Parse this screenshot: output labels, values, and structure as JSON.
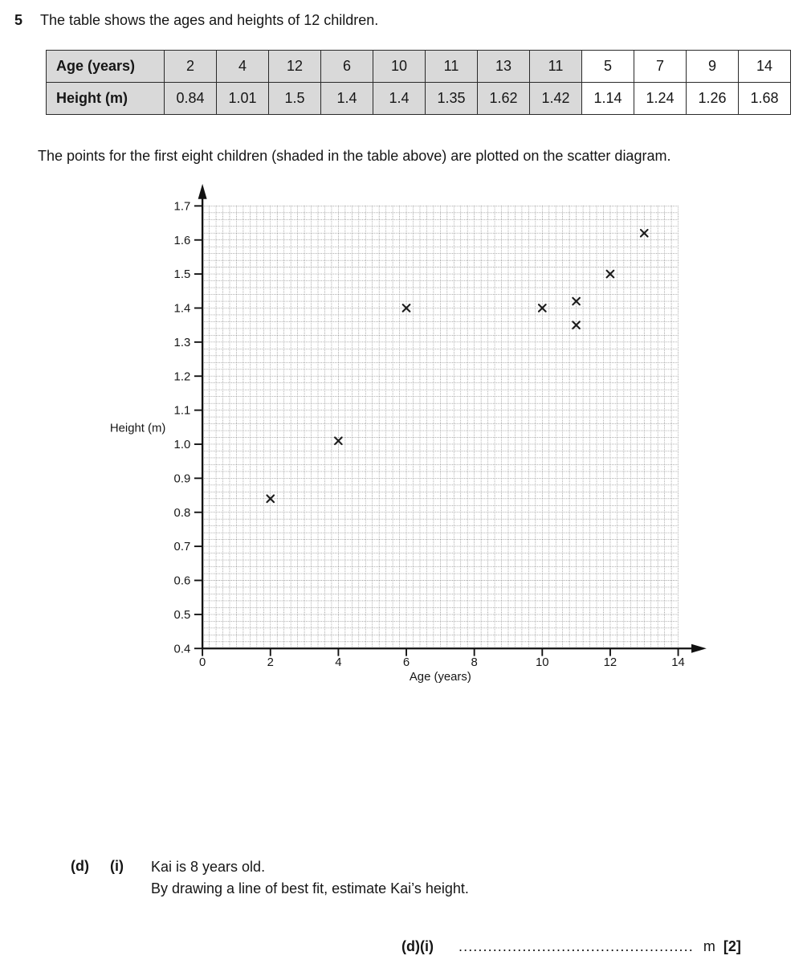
{
  "question": {
    "number": "5",
    "intro": "The table shows the ages and heights of 12 children.",
    "plot_note": "The points for the first eight children (shaded in the table above) are plotted on the scatter diagram."
  },
  "table": {
    "row_headers": [
      "Age (years)",
      "Height (m)"
    ],
    "rows": [
      [
        "2",
        "4",
        "12",
        "6",
        "10",
        "11",
        "13",
        "11",
        "5",
        "7",
        "9",
        "14"
      ],
      [
        "0.84",
        "1.01",
        "1.5",
        "1.4",
        "1.4",
        "1.35",
        "1.62",
        "1.42",
        "1.14",
        "1.24",
        "1.26",
        "1.68"
      ]
    ],
    "shaded_count": 8,
    "shaded_color": "#d9d9d9"
  },
  "chart_data": {
    "type": "scatter",
    "title": "",
    "xlabel": "Age (years)",
    "ylabel": "Height (m)",
    "xlim": [
      0,
      14
    ],
    "ylim": [
      0.4,
      1.7
    ],
    "x_tick_labels": [
      "0",
      "2",
      "4",
      "6",
      "8",
      "10",
      "12",
      "14"
    ],
    "x_tick_values": [
      0,
      2,
      4,
      6,
      8,
      10,
      12,
      14
    ],
    "y_tick_labels": [
      "0.4",
      "0.5",
      "0.6",
      "0.7",
      "0.8",
      "0.9",
      "1.0",
      "1.1",
      "1.2",
      "1.3",
      "1.4",
      "1.5",
      "1.6",
      "1.7"
    ],
    "y_tick_values": [
      0.4,
      0.5,
      0.6,
      0.7,
      0.8,
      0.9,
      1.0,
      1.1,
      1.2,
      1.3,
      1.4,
      1.5,
      1.6,
      1.7
    ],
    "x_minor_step": 0.2,
    "y_minor_step": 0.02,
    "grid": true,
    "legend": false,
    "marker": "x",
    "marker_color": "#1c1c1c",
    "grid_color": "#5a5a5a",
    "axis_color": "#111111",
    "points": [
      {
        "x": 2,
        "y": 0.84
      },
      {
        "x": 4,
        "y": 1.01
      },
      {
        "x": 12,
        "y": 1.5
      },
      {
        "x": 6,
        "y": 1.4
      },
      {
        "x": 10,
        "y": 1.4
      },
      {
        "x": 11,
        "y": 1.35
      },
      {
        "x": 13,
        "y": 1.62
      },
      {
        "x": 11,
        "y": 1.42
      }
    ]
  },
  "part_d": {
    "d_label": "(d)",
    "i_label": "(i)",
    "line1": "Kai is 8 years old.",
    "line2": "By drawing a line of best fit, estimate Kai’s height."
  },
  "answer": {
    "label": "(d)(i)",
    "dots": "................................................",
    "unit": "m",
    "marks": "[2]"
  }
}
